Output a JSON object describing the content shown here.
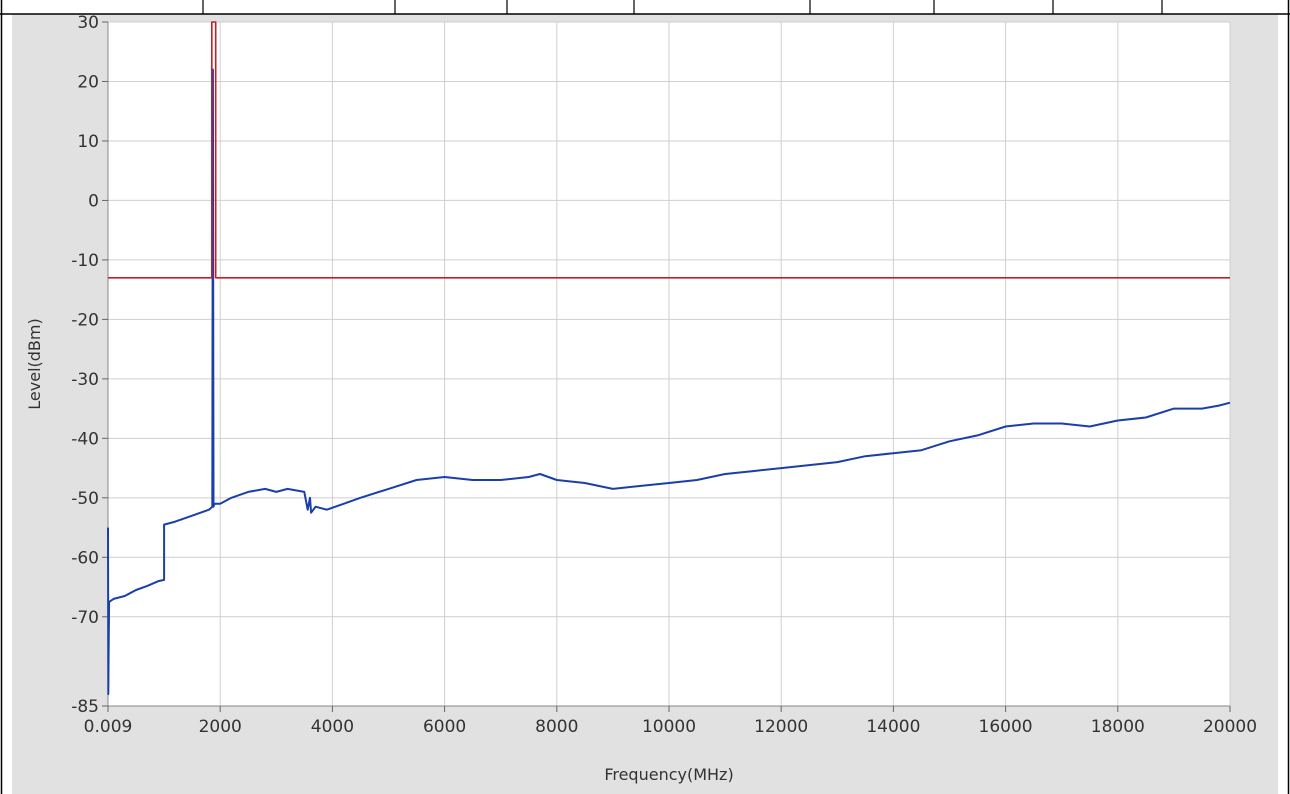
{
  "chart_data": {
    "type": "line",
    "title": "",
    "xlabel": "Frequency(MHz)",
    "ylabel": "Level(dBm)",
    "xlim": [
      0.009,
      20000
    ],
    "ylim": [
      -85,
      30
    ],
    "x_ticks": [
      0.009,
      2000,
      4000,
      6000,
      8000,
      10000,
      12000,
      14000,
      16000,
      18000,
      20000
    ],
    "x_tick_labels": [
      "0.009",
      "2000",
      "4000",
      "6000",
      "8000",
      "10000",
      "12000",
      "14000",
      "16000",
      "18000",
      "20000"
    ],
    "y_ticks": [
      30,
      20,
      10,
      0,
      -10,
      -20,
      -30,
      -40,
      -50,
      -60,
      -70,
      -85
    ],
    "y_tick_labels": [
      "30",
      "20",
      "10",
      "0",
      "-10",
      "-20",
      "-30",
      "-40",
      "-50",
      "-60",
      "-70",
      "-85"
    ],
    "grid": true,
    "legend": "none",
    "series": [
      {
        "color": "#1a3fa8",
        "x": [
          0.009,
          5,
          10,
          20,
          100,
          300,
          500,
          700,
          900,
          1000,
          1000,
          1200,
          1500,
          1800,
          1860,
          1870,
          1880,
          1890,
          1900,
          2000,
          2200,
          2500,
          2800,
          3000,
          3200,
          3500,
          3560,
          3600,
          3620,
          3700,
          3900,
          4200,
          4500,
          5000,
          5500,
          6000,
          6500,
          7000,
          7500,
          7700,
          8000,
          8500,
          9000,
          9500,
          10000,
          10500,
          11000,
          11500,
          12000,
          12500,
          13000,
          13500,
          14000,
          14500,
          15000,
          15500,
          16000,
          16500,
          17000,
          17500,
          18000,
          18500,
          19000,
          19500,
          19800,
          20000
        ],
        "y": [
          -55,
          -83,
          -76,
          -67.5,
          -67,
          -66.5,
          -65.5,
          -64.8,
          -64,
          -63.8,
          -54.5,
          -54,
          -53,
          -52,
          -51.5,
          22,
          -51.5,
          -51.2,
          -51,
          -51,
          -50,
          -49,
          -48.5,
          -49,
          -48.5,
          -49,
          -52,
          -50,
          -52.5,
          -51.5,
          -52,
          -51,
          -50,
          -48.5,
          -47,
          -46.5,
          -47,
          -47,
          -46.5,
          -46,
          -47,
          -47.5,
          -48.5,
          -48,
          -47.5,
          -47,
          -46,
          -45.5,
          -45,
          -44.5,
          -44,
          -43,
          -42.5,
          -42,
          -40.5,
          -39.5,
          -38,
          -37.5,
          -37.5,
          -38,
          -37,
          -36.5,
          -35,
          -35,
          -34.5,
          -34
        ]
      },
      {
        "color": "#c0202a",
        "x": [
          0.009,
          1830,
          1850,
          1850,
          1880,
          1880,
          1920,
          1920,
          1940,
          20000
        ],
        "y": [
          -13,
          -13,
          -13,
          30,
          30,
          30,
          30,
          -13,
          -13,
          -13
        ]
      }
    ]
  }
}
